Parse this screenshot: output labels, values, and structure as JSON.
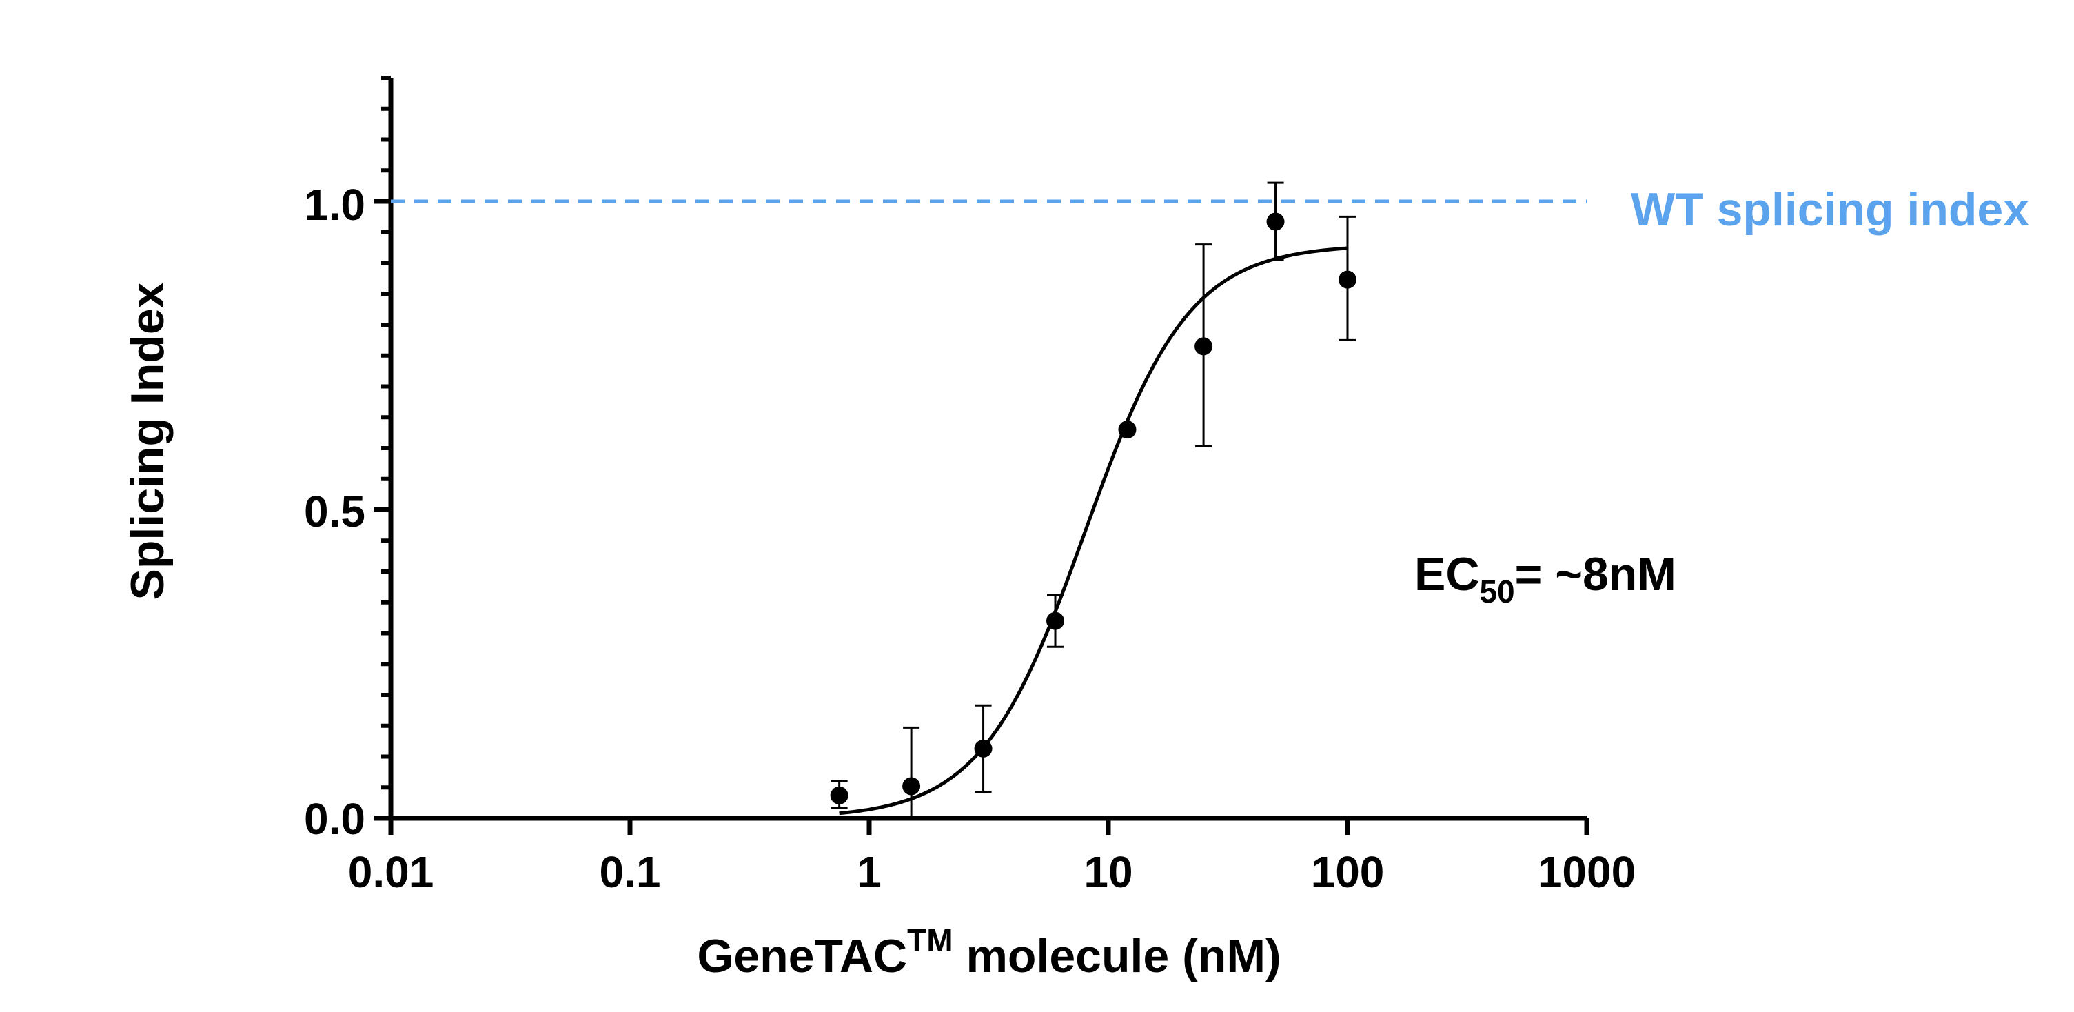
{
  "chart_data": {
    "type": "scatter",
    "x_scale": "log",
    "xlim": [
      0.01,
      1000
    ],
    "ylim": [
      0,
      1.2
    ],
    "x_tick_labels": [
      "0.01",
      "0.1",
      "1",
      "10",
      "100",
      "1000"
    ],
    "y_tick_labels": [
      "0.0",
      "0.5",
      "1.0"
    ],
    "xlabel": {
      "main": "GeneTAC",
      "superscript": "TM",
      "rest": " molecule (nM)"
    },
    "ylabel": "Splicing Index",
    "grid": false,
    "points": [
      {
        "x": 0.75,
        "y": 0.037,
        "err_low": 0.017,
        "err_high": 0.06
      },
      {
        "x": 1.5,
        "y": 0.052,
        "err_low": 0.0,
        "err_high": 0.147
      },
      {
        "x": 3,
        "y": 0.113,
        "err_low": 0.043,
        "err_high": 0.183
      },
      {
        "x": 6,
        "y": 0.32,
        "err_low": 0.278,
        "err_high": 0.362
      },
      {
        "x": 12,
        "y": 0.63,
        "err_low": 0.63,
        "err_high": 0.63
      },
      {
        "x": 25,
        "y": 0.765,
        "err_low": 0.603,
        "err_high": 0.93
      },
      {
        "x": 50,
        "y": 0.967,
        "err_low": 0.905,
        "err_high": 1.03
      },
      {
        "x": 100,
        "y": 0.873,
        "err_low": 0.775,
        "err_high": 0.975
      }
    ],
    "fit": {
      "model": "sigmoidal dose-response",
      "bottom": 0,
      "top": 0.93,
      "ec50": 8,
      "hill": 2,
      "x_range": [
        0.75,
        100
      ]
    },
    "reference_line": {
      "y": 1.0,
      "label": "WT splicing index",
      "color": "#5ba3ec",
      "style": "dashed"
    },
    "annotation": {
      "main": "EC",
      "subscript": "50",
      "rest": "= ~8nM"
    },
    "colors": {
      "points": "#000000",
      "curve": "#000000",
      "reference": "#5ba3ec"
    }
  }
}
